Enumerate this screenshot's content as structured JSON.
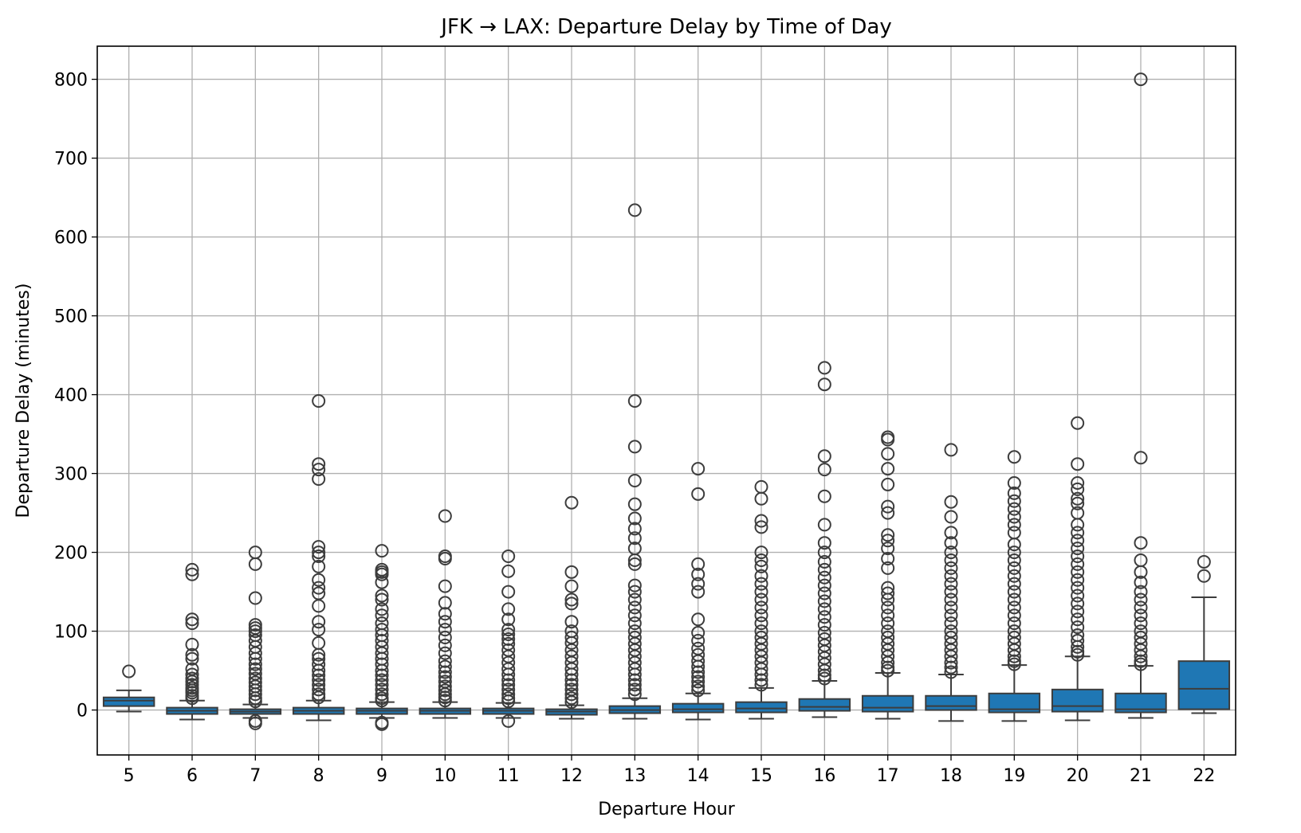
{
  "chart_data": {
    "type": "box",
    "title": "JFK → LAX: Departure Delay by Time of Day",
    "xlabel": "Departure Hour",
    "ylabel": "Departure Delay (minutes)",
    "ylim": [
      -57,
      842
    ],
    "yticks": [
      0,
      100,
      200,
      300,
      400,
      500,
      600,
      700,
      800
    ],
    "grid": true,
    "box_color": "#1f77b4",
    "line_color": "#3d3d3d",
    "categories": [
      "5",
      "6",
      "7",
      "8",
      "9",
      "10",
      "11",
      "12",
      "13",
      "14",
      "15",
      "16",
      "17",
      "18",
      "19",
      "20",
      "21",
      "22"
    ],
    "boxes": [
      {
        "hour": "5",
        "whislo": -2,
        "q1": 5,
        "med": 12,
        "q3": 16,
        "whishi": 25,
        "fliers": [
          49
        ]
      },
      {
        "hour": "6",
        "whislo": -12,
        "q1": -5,
        "med": -1,
        "q3": 3,
        "whishi": 12,
        "fliers": [
          178,
          172,
          115,
          110,
          83,
          70,
          65,
          52,
          45,
          40,
          36,
          32,
          28,
          25,
          22,
          18,
          15
        ]
      },
      {
        "hour": "7",
        "whislo": -10,
        "q1": -5,
        "med": -2,
        "q3": 1,
        "whishi": 7,
        "fliers": [
          200,
          185,
          142,
          108,
          104,
          100,
          95,
          88,
          80,
          72,
          65,
          58,
          52,
          46,
          40,
          35,
          30,
          25,
          20,
          15,
          11,
          -14,
          -17
        ]
      },
      {
        "hour": "8",
        "whislo": -13,
        "q1": -5,
        "med": -1,
        "q3": 3,
        "whishi": 12,
        "fliers": [
          392,
          312,
          305,
          293,
          207,
          200,
          195,
          182,
          165,
          155,
          148,
          132,
          112,
          102,
          85,
          70,
          65,
          58,
          50,
          44,
          38,
          32,
          26,
          20,
          16
        ]
      },
      {
        "hour": "9",
        "whislo": -10,
        "q1": -5,
        "med": -1,
        "q3": 2,
        "whishi": 10,
        "fliers": [
          202,
          178,
          175,
          172,
          162,
          145,
          140,
          128,
          120,
          110,
          102,
          95,
          88,
          80,
          72,
          65,
          58,
          50,
          44,
          38,
          32,
          26,
          20,
          15,
          12,
          -16,
          -18
        ]
      },
      {
        "hour": "10",
        "whislo": -10,
        "q1": -5,
        "med": -1,
        "q3": 2,
        "whishi": 10,
        "fliers": [
          246,
          195,
          192,
          157,
          136,
          122,
          112,
          102,
          92,
          82,
          72,
          62,
          55,
          48,
          42,
          36,
          30,
          25,
          20,
          16,
          12
        ]
      },
      {
        "hour": "11",
        "whislo": -10,
        "q1": -5,
        "med": -1,
        "q3": 2,
        "whishi": 9,
        "fliers": [
          195,
          176,
          150,
          128,
          115,
          102,
          96,
          90,
          84,
          76,
          68,
          60,
          52,
          45,
          38,
          32,
          26,
          20,
          15,
          11,
          -14
        ]
      },
      {
        "hour": "12",
        "whislo": -11,
        "q1": -6,
        "med": -2,
        "q3": 1,
        "whishi": 6,
        "fliers": [
          263,
          175,
          157,
          140,
          135,
          112,
          100,
          92,
          85,
          76,
          68,
          60,
          52,
          45,
          38,
          32,
          26,
          20,
          15,
          10
        ]
      },
      {
        "hour": "13",
        "whislo": -11,
        "q1": -4,
        "med": 0,
        "q3": 5,
        "whishi": 15,
        "fliers": [
          634,
          392,
          334,
          291,
          261,
          243,
          230,
          218,
          205,
          190,
          185,
          158,
          150,
          140,
          130,
          120,
          110,
          100,
          92,
          84,
          76,
          68,
          60,
          52,
          45,
          38,
          32,
          26,
          20
        ]
      },
      {
        "hour": "14",
        "whislo": -12,
        "q1": -3,
        "med": 1,
        "q3": 8,
        "whishi": 21,
        "fliers": [
          306,
          274,
          185,
          172,
          160,
          150,
          115,
          98,
          88,
          78,
          70,
          62,
          55,
          48,
          42,
          36,
          30,
          25
        ]
      },
      {
        "hour": "15",
        "whislo": -11,
        "q1": -3,
        "med": 2,
        "q3": 10,
        "whishi": 28,
        "fliers": [
          283,
          268,
          240,
          232,
          200,
          190,
          182,
          170,
          160,
          150,
          140,
          130,
          120,
          110,
          100,
          92,
          84,
          76,
          68,
          60,
          52,
          45,
          38,
          32
        ]
      },
      {
        "hour": "16",
        "whislo": -9,
        "q1": -1,
        "med": 4,
        "q3": 14,
        "whishi": 37,
        "fliers": [
          434,
          413,
          322,
          305,
          271,
          235,
          212,
          200,
          188,
          178,
          168,
          158,
          148,
          138,
          128,
          118,
          108,
          98,
          90,
          82,
          74,
          66,
          58,
          50,
          44,
          40
        ]
      },
      {
        "hour": "17",
        "whislo": -11,
        "q1": -2,
        "med": 3,
        "q3": 18,
        "whishi": 47,
        "fliers": [
          346,
          343,
          325,
          306,
          286,
          258,
          250,
          222,
          215,
          205,
          192,
          180,
          155,
          148,
          140,
          130,
          120,
          110,
          100,
          92,
          84,
          76,
          68,
          60,
          54,
          50
        ]
      },
      {
        "hour": "18",
        "whislo": -14,
        "q1": 0,
        "med": 5,
        "q3": 18,
        "whishi": 45,
        "fliers": [
          330,
          264,
          245,
          225,
          212,
          200,
          190,
          180,
          170,
          160,
          150,
          140,
          130,
          120,
          110,
          100,
          92,
          84,
          76,
          68,
          60,
          54,
          48
        ]
      },
      {
        "hour": "19",
        "whislo": -14,
        "q1": -3,
        "med": 1,
        "q3": 21,
        "whishi": 57,
        "fliers": [
          321,
          288,
          275,
          265,
          255,
          245,
          235,
          225,
          210,
          200,
          190,
          180,
          170,
          160,
          150,
          140,
          130,
          120,
          110,
          100,
          92,
          84,
          76,
          68,
          62,
          58
        ]
      },
      {
        "hour": "20",
        "whislo": -13,
        "q1": -2,
        "med": 5,
        "q3": 26,
        "whishi": 68,
        "fliers": [
          364,
          312,
          288,
          280,
          268,
          262,
          250,
          235,
          225,
          215,
          205,
          195,
          185,
          175,
          165,
          155,
          145,
          135,
          125,
          115,
          105,
          95,
          88,
          80,
          74,
          70
        ]
      },
      {
        "hour": "21",
        "whislo": -10,
        "q1": -3,
        "med": 1,
        "q3": 21,
        "whishi": 56,
        "fliers": [
          800,
          320,
          212,
          190,
          175,
          162,
          150,
          140,
          130,
          120,
          110,
          100,
          92,
          84,
          76,
          68,
          62,
          58
        ]
      },
      {
        "hour": "22",
        "whislo": -4,
        "q1": 1,
        "med": 27,
        "q3": 62,
        "whishi": 143,
        "fliers": [
          188,
          170
        ]
      }
    ]
  }
}
